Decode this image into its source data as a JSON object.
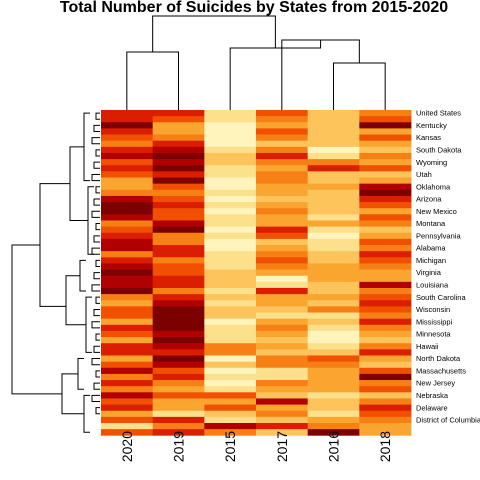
{
  "chart_data": {
    "type": "heatmap",
    "title": "Total Number of Suicides by States from 2015-2020",
    "columns": [
      "2020",
      "2019",
      "2015",
      "2017",
      "2016",
      "2018"
    ],
    "rows": [
      "United States",
      "",
      "Kentucky",
      "",
      "Kansas",
      "",
      "South Dakota",
      "",
      "Wyoming",
      "",
      "Utah",
      "",
      "Oklahoma",
      "",
      "Arizona",
      "",
      "New Mexico",
      "",
      "Montana",
      "",
      "Pennsylvania",
      "",
      "Alabama",
      "",
      "Michigan",
      "",
      "Virginia",
      "",
      "Louisiana",
      "",
      "South Carolina",
      "",
      "Wisconsin",
      "",
      "Mississippi",
      "",
      "Minnesota",
      "",
      "Hawaii",
      "",
      "North Dakota",
      "",
      "Massachusetts",
      "",
      "New Jersey",
      "",
      "Nebraska",
      "",
      "Delaware",
      "",
      "District of Columbia"
    ],
    "palette": [
      "#7d0000",
      "#b10000",
      "#dc1e00",
      "#f05000",
      "#f78015",
      "#f9a530",
      "#fcc45a",
      "#fde08c",
      "#fff4bc"
    ],
    "values": [
      [
        2,
        2,
        7,
        3,
        6,
        4
      ],
      [
        2,
        3,
        7,
        4,
        6,
        3
      ],
      [
        0,
        5,
        8,
        5,
        6,
        0
      ],
      [
        2,
        5,
        8,
        3,
        6,
        5
      ],
      [
        3,
        4,
        8,
        4,
        6,
        3
      ],
      [
        4,
        2,
        8,
        6,
        6,
        5
      ],
      [
        2,
        1,
        7,
        4,
        8,
        6
      ],
      [
        1,
        0,
        6,
        2,
        7,
        4
      ],
      [
        3,
        1,
        6,
        4,
        4,
        5
      ],
      [
        2,
        0,
        7,
        5,
        2,
        3
      ],
      [
        3,
        2,
        7,
        4,
        6,
        6
      ],
      [
        5,
        0,
        8,
        4,
        6,
        5
      ],
      [
        5,
        3,
        8,
        5,
        5,
        1
      ],
      [
        4,
        4,
        7,
        5,
        6,
        0
      ],
      [
        1,
        3,
        8,
        6,
        6,
        2
      ],
      [
        0,
        2,
        7,
        5,
        6,
        3
      ],
      [
        0,
        3,
        8,
        4,
        6,
        5
      ],
      [
        1,
        3,
        7,
        5,
        7,
        3
      ],
      [
        4,
        1,
        7,
        5,
        5,
        4
      ],
      [
        3,
        0,
        8,
        2,
        7,
        6
      ],
      [
        2,
        4,
        7,
        3,
        8,
        5
      ],
      [
        1,
        4,
        8,
        6,
        7,
        3
      ],
      [
        1,
        2,
        8,
        5,
        7,
        4
      ],
      [
        4,
        2,
        7,
        4,
        6,
        2
      ],
      [
        2,
        4,
        7,
        3,
        6,
        3
      ],
      [
        1,
        3,
        7,
        4,
        5,
        4
      ],
      [
        0,
        3,
        6,
        5,
        5,
        5
      ],
      [
        1,
        2,
        6,
        8,
        5,
        5
      ],
      [
        1,
        2,
        6,
        7,
        6,
        1
      ],
      [
        0,
        4,
        7,
        2,
        6,
        4
      ],
      [
        4,
        2,
        6,
        5,
        5,
        3
      ],
      [
        5,
        1,
        7,
        5,
        6,
        2
      ],
      [
        3,
        0,
        6,
        6,
        4,
        3
      ],
      [
        3,
        0,
        6,
        7,
        7,
        4
      ],
      [
        5,
        0,
        8,
        5,
        6,
        2
      ],
      [
        2,
        0,
        7,
        4,
        7,
        4
      ],
      [
        3,
        1,
        7,
        5,
        8,
        5
      ],
      [
        5,
        0,
        7,
        6,
        8,
        6
      ],
      [
        2,
        1,
        4,
        5,
        7,
        4
      ],
      [
        2,
        2,
        4,
        6,
        6,
        2
      ],
      [
        5,
        0,
        8,
        4,
        3,
        5
      ],
      [
        3,
        1,
        6,
        4,
        4,
        6
      ],
      [
        1,
        3,
        8,
        7,
        5,
        3
      ],
      [
        4,
        2,
        7,
        7,
        5,
        0
      ],
      [
        2,
        4,
        8,
        4,
        5,
        4
      ],
      [
        4,
        5,
        7,
        5,
        5,
        3
      ],
      [
        1,
        3,
        3,
        6,
        7,
        6
      ],
      [
        3,
        5,
        5,
        1,
        6,
        4
      ],
      [
        2,
        5,
        3,
        5,
        6,
        2
      ],
      [
        5,
        7,
        6,
        4,
        7,
        3
      ],
      [
        3,
        2,
        7,
        6,
        5,
        4
      ],
      [
        7,
        4,
        1,
        2,
        4,
        5
      ],
      [
        3,
        2,
        4,
        6,
        0,
        5
      ]
    ]
  }
}
